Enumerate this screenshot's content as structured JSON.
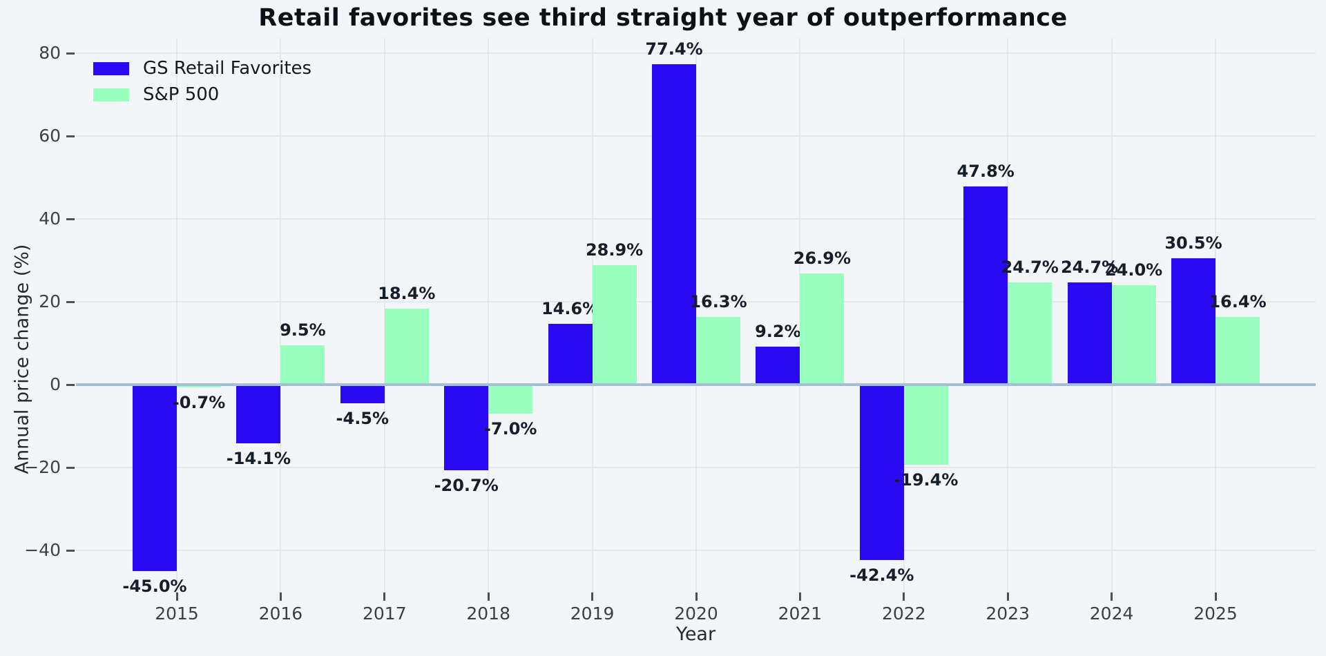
{
  "chart_data": {
    "type": "bar",
    "title": "Retail favorites see third straight year of outperformance",
    "xlabel": "Year",
    "ylabel": "Annual price change (%)",
    "categories": [
      "2015",
      "2016",
      "2017",
      "2018",
      "2019",
      "2020",
      "2021",
      "2022",
      "2023",
      "2024",
      "2025"
    ],
    "series": [
      {
        "name": "GS Retail Favorites",
        "color": "#2a0af2",
        "values": [
          -45.0,
          -14.1,
          -4.5,
          -20.7,
          14.6,
          77.4,
          9.2,
          -42.4,
          47.8,
          24.7,
          30.5
        ]
      },
      {
        "name": "S&P 500",
        "color": "#98ffbe",
        "values": [
          -0.7,
          9.5,
          18.4,
          -7.0,
          28.9,
          16.3,
          26.9,
          -19.4,
          24.7,
          24.0,
          16.4
        ]
      }
    ],
    "value_labels": {
      "GS Retail Favorites": [
        "-45.0%",
        "-14.1%",
        "-4.5%",
        "-20.7%",
        "14.6%",
        "77.4%",
        "9.2%",
        "-42.4%",
        "47.8%",
        "24.7%",
        "30.5%"
      ],
      "S&P 500": [
        "-0.7%",
        "9.5%",
        "18.4%",
        "-7.0%",
        "28.9%",
        "16.3%",
        "26.9%",
        "-19.4%",
        "24.7%",
        "24.0%",
        "16.4%"
      ]
    },
    "yticks": [
      -40,
      -20,
      0,
      20,
      40,
      60,
      80
    ],
    "ylim": [
      -52,
      84
    ],
    "grid": true,
    "zero_line": true,
    "legend_position": "upper left",
    "colors": {
      "background": "#f4f5f9",
      "grid": "#e7e8ee",
      "zero_line": "#a3c0d6",
      "tick_text": "#3b4048",
      "value_label_text": "#171e2b",
      "title_text": "#0d1117"
    }
  }
}
